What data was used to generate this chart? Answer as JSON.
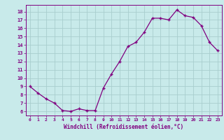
{
  "x": [
    0,
    1,
    2,
    3,
    4,
    5,
    6,
    7,
    8,
    9,
    10,
    11,
    12,
    13,
    14,
    15,
    16,
    17,
    18,
    19,
    20,
    21,
    22,
    23
  ],
  "y": [
    9,
    8.2,
    7.5,
    7.0,
    6.1,
    6.0,
    6.3,
    6.1,
    6.1,
    8.8,
    10.5,
    12.0,
    13.8,
    14.3,
    15.5,
    17.2,
    17.2,
    17.0,
    18.2,
    17.5,
    17.3,
    16.3,
    14.3,
    13.3
  ],
  "line_color": "#800080",
  "marker": "+",
  "bg_color": "#c8eaea",
  "grid_color": "#a8cece",
  "tick_color": "#800080",
  "label_color": "#800080",
  "xlabel": "Windchill (Refroidissement éolien,°C)",
  "ylim": [
    5.5,
    18.8
  ],
  "xlim": [
    -0.5,
    23.5
  ],
  "yticks": [
    6,
    7,
    8,
    9,
    10,
    11,
    12,
    13,
    14,
    15,
    16,
    17,
    18
  ],
  "xticks": [
    0,
    1,
    2,
    3,
    4,
    5,
    6,
    7,
    8,
    9,
    10,
    11,
    12,
    13,
    14,
    15,
    16,
    17,
    18,
    19,
    20,
    21,
    22,
    23
  ]
}
